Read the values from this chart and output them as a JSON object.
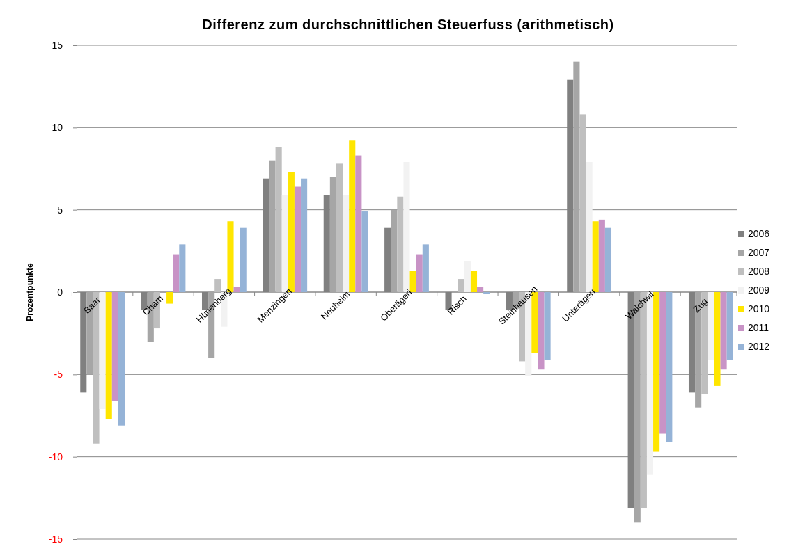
{
  "chart_data": {
    "type": "bar",
    "title": "Differenz zum durchschnittlichen Steuerfuss (arithmetisch)",
    "ylabel": "Prozentpunkte",
    "categories": [
      "Baar",
      "Cham",
      "Hünenberg",
      "Menzingen",
      "Neuheim",
      "Oberägeri",
      "Risch",
      "Steinhausen",
      "Unterägeri",
      "Walchwil",
      "Zug"
    ],
    "series": [
      {
        "name": "2006",
        "color": "#808080",
        "values": [
          -6.1,
          -1.1,
          -1.1,
          6.9,
          5.9,
          3.9,
          -1.1,
          -1.1,
          12.9,
          -13.1,
          -6.1
        ]
      },
      {
        "name": "2007",
        "color": "#a6a6a6",
        "values": [
          -5.0,
          -3.0,
          -4.0,
          8.0,
          7.0,
          5.0,
          0,
          -1.0,
          14.0,
          -14.0,
          -7.0
        ]
      },
      {
        "name": "2008",
        "color": "#bfbfbf",
        "values": [
          -9.2,
          -2.2,
          0.8,
          8.8,
          7.8,
          5.8,
          0.8,
          -4.2,
          10.8,
          -13.1,
          -6.2
        ]
      },
      {
        "name": "2009",
        "color": "#f2f2f2",
        "values": [
          -7.1,
          0,
          -2.1,
          5.9,
          5.9,
          7.9,
          1.9,
          -5.1,
          7.9,
          -11.1,
          -4.1
        ]
      },
      {
        "name": "2010",
        "color": "#ffe600",
        "values": [
          -7.7,
          -0.7,
          4.3,
          7.3,
          9.2,
          1.3,
          1.3,
          -3.7,
          4.3,
          -9.7,
          -5.7
        ]
      },
      {
        "name": "2011",
        "color": "#c893c6",
        "values": [
          -6.6,
          2.3,
          0.3,
          6.4,
          8.3,
          2.3,
          0.3,
          -4.7,
          4.4,
          -8.6,
          -4.7
        ]
      },
      {
        "name": "2012",
        "color": "#95b3d7",
        "values": [
          -8.1,
          2.9,
          3.9,
          6.9,
          4.9,
          2.9,
          -0.1,
          -4.1,
          3.9,
          -9.1,
          -4.1
        ]
      }
    ],
    "ylim": [
      -15,
      15
    ],
    "yticks": [
      -15,
      -10,
      -5,
      0,
      5,
      10,
      15
    ],
    "grid": "y",
    "legend": "right"
  }
}
